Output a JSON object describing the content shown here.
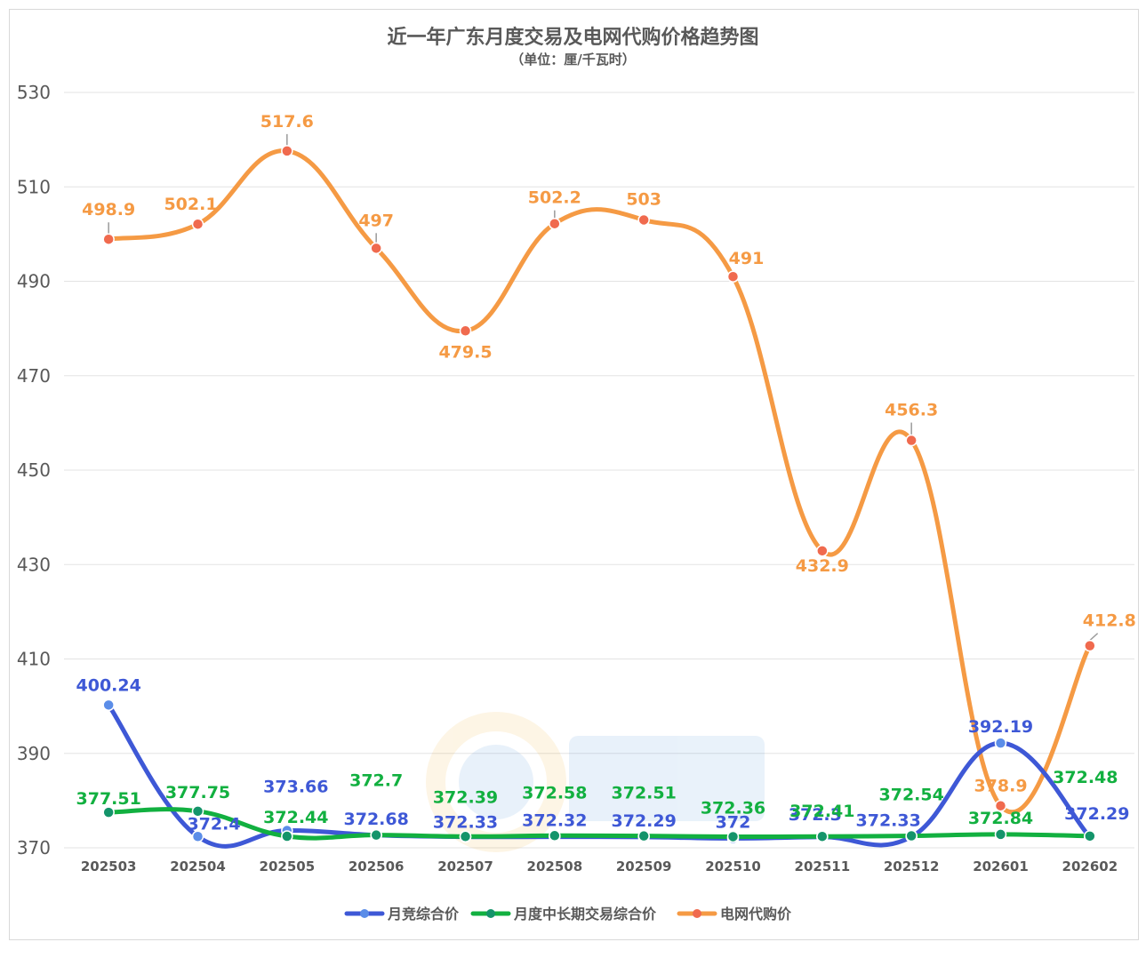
{
  "chart_data": {
    "type": "line",
    "title": "近一年广东月度交易及电网代购价格趋势图",
    "subtitle": "（单位：厘/千瓦时）",
    "categories": [
      "202503",
      "202504",
      "202505",
      "202506",
      "202507",
      "202508",
      "202509",
      "202510",
      "202511",
      "202512",
      "202601",
      "202602"
    ],
    "y_ticks": [
      370,
      390,
      410,
      430,
      450,
      470,
      490,
      510,
      530
    ],
    "ylim": [
      370,
      530
    ],
    "grid": true,
    "legend_position": "bottom",
    "series": [
      {
        "name": "月竞综合价",
        "color": "#3e58d6",
        "marker_color": "#5b8de8",
        "values": [
          400.24,
          372.4,
          373.66,
          372.68,
          372.33,
          372.32,
          372.29,
          372,
          372.3,
          372.33,
          392.19,
          372.29
        ],
        "labels": [
          "400.24",
          "372.4",
          "373.66",
          "372.68",
          "372.33",
          "372.32",
          "372.29",
          "372",
          "372.3",
          "372.33",
          "392.19",
          "372.29"
        ]
      },
      {
        "name": "月度中长期交易综合价",
        "color": "#12b040",
        "marker_color": "#14946a",
        "values": [
          377.51,
          377.75,
          372.44,
          372.7,
          372.39,
          372.58,
          372.51,
          372.36,
          372.41,
          372.54,
          372.84,
          372.48
        ],
        "labels": [
          "377.51",
          "377.75",
          "372.44",
          "372.7",
          "372.39",
          "372.58",
          "372.51",
          "372.36",
          "372.41",
          "372.54",
          "372.84",
          "372.48"
        ]
      },
      {
        "name": "电网代购价",
        "color": "#f59a44",
        "marker_color": "#f06a4e",
        "values": [
          498.9,
          502.1,
          517.6,
          497,
          479.5,
          502.2,
          503,
          491,
          432.9,
          456.3,
          378.9,
          412.8
        ],
        "labels": [
          "498.9",
          "502.1",
          "517.6",
          "497",
          "479.5",
          "502.2",
          "503",
          "491",
          "432.9",
          "456.3",
          "378.9",
          "412.8"
        ]
      }
    ]
  }
}
